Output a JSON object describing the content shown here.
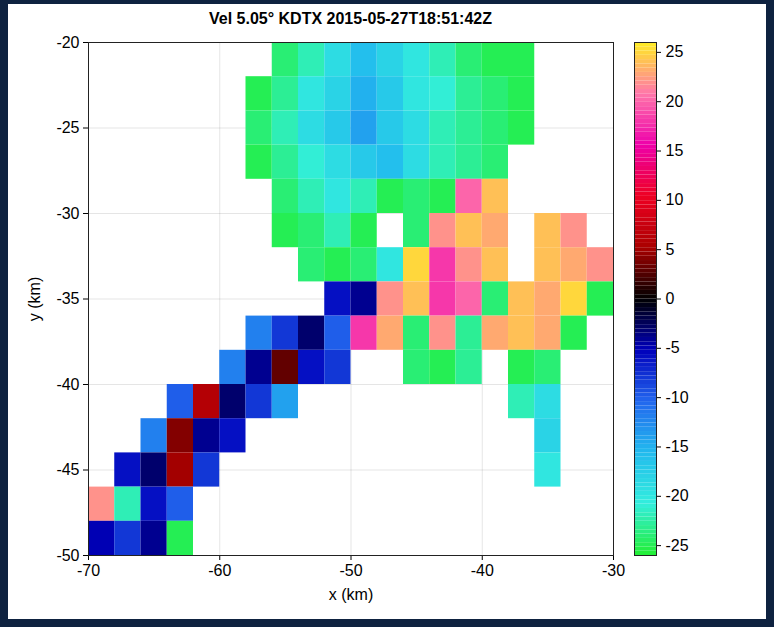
{
  "chart_data": {
    "type": "heatmap",
    "title": "Vel 5.05° KDTX 2015-05-27T18:51:42Z",
    "x_label": "x (km)",
    "y_label": "y (km)",
    "xlim": [
      -70,
      -30
    ],
    "ylim": [
      -50,
      -20
    ],
    "xticks": [
      -70,
      -60,
      -50,
      -40,
      -30
    ],
    "yticks": [
      -50,
      -45,
      -40,
      -35,
      -30,
      -25,
      -20
    ],
    "grid": true,
    "x_edges": [
      -70,
      -68,
      -66,
      -64,
      -62,
      -60,
      -58,
      -56,
      -54,
      -52,
      -50,
      -48,
      -46,
      -44,
      -42,
      -40,
      -38,
      -36,
      -34,
      -32,
      -30
    ],
    "y_edges": [
      -20,
      -22,
      -24,
      -26,
      -28,
      -30,
      -32,
      -34,
      -36,
      -38,
      -40,
      -42,
      -44,
      -46,
      -48,
      -50
    ],
    "values": [
      [
        null,
        null,
        null,
        null,
        null,
        null,
        null,
        -24,
        -22,
        -19,
        -16,
        -18,
        -20,
        -22,
        -24,
        -25,
        -25,
        null,
        null,
        null
      ],
      [
        null,
        null,
        null,
        null,
        null,
        null,
        -25,
        -23,
        -20,
        -18,
        -15,
        -17,
        -20,
        -21,
        -23,
        -24,
        -25,
        null,
        null,
        null
      ],
      [
        null,
        null,
        null,
        null,
        null,
        null,
        -24,
        -22,
        -19,
        -17,
        -14,
        -17,
        -19,
        -22,
        -23,
        -24,
        -25,
        null,
        null,
        null
      ],
      [
        null,
        null,
        null,
        null,
        null,
        null,
        -25,
        -23,
        -21,
        -19,
        -17,
        -16,
        -19,
        -22,
        -23,
        -24,
        null,
        null,
        null,
        null
      ],
      [
        null,
        null,
        null,
        null,
        null,
        null,
        null,
        -24,
        -22,
        -20,
        -22,
        -25,
        -24,
        -25,
        20,
        24,
        null,
        null,
        null,
        null
      ],
      [
        null,
        null,
        null,
        null,
        null,
        null,
        null,
        -25,
        -24,
        -22,
        -25,
        null,
        -24,
        22,
        24,
        23,
        null,
        24,
        22,
        null
      ],
      [
        null,
        null,
        null,
        null,
        null,
        null,
        null,
        null,
        -24,
        -25,
        -24,
        -20,
        25,
        18,
        22,
        24,
        null,
        24,
        23,
        22
      ],
      [
        null,
        null,
        null,
        null,
        null,
        null,
        null,
        null,
        null,
        -6,
        -4,
        22,
        24,
        18,
        20,
        -24,
        24,
        23,
        25,
        -25
      ],
      [
        null,
        null,
        null,
        null,
        null,
        null,
        -12,
        -8,
        -3,
        -10,
        18,
        23,
        -24,
        22,
        -23,
        23,
        24,
        23,
        -25,
        null
      ],
      [
        null,
        null,
        null,
        null,
        null,
        -12,
        -4,
        3,
        -6,
        -8,
        null,
        null,
        -24,
        -25,
        -23,
        null,
        -25,
        -24,
        null,
        null
      ],
      [
        null,
        null,
        null,
        -10,
        6,
        -3,
        -8,
        -14,
        null,
        null,
        null,
        null,
        null,
        null,
        null,
        null,
        -22,
        -19,
        null,
        null
      ],
      [
        null,
        null,
        -12,
        4,
        -4,
        -6,
        null,
        null,
        null,
        null,
        null,
        null,
        null,
        null,
        null,
        null,
        null,
        -18,
        null,
        null
      ],
      [
        null,
        -6,
        -3,
        5,
        -8,
        null,
        null,
        null,
        null,
        null,
        null,
        null,
        null,
        null,
        null,
        null,
        null,
        -20,
        null,
        null
      ],
      [
        22,
        -22,
        -6,
        -10,
        null,
        null,
        null,
        null,
        null,
        null,
        null,
        null,
        null,
        null,
        null,
        null,
        null,
        null,
        null,
        null
      ],
      [
        -5,
        -8,
        -4,
        -25,
        null,
        null,
        null,
        null,
        null,
        null,
        null,
        null,
        null,
        null,
        null,
        null,
        null,
        null,
        null,
        null
      ]
    ],
    "colors": [
      "#22ee33",
      "#33eedd",
      "#22bbee",
      "#2266ee",
      "#0000bb",
      "#000000",
      "#aa0000",
      "#ee0022",
      "#ee00aa",
      "#ff77aa",
      "#ffee22"
    ],
    "colorbar": {
      "lim": [
        -26,
        26
      ],
      "ticks": [
        -25,
        -20,
        -15,
        -10,
        -5,
        0,
        5,
        10,
        15,
        20,
        25
      ]
    }
  }
}
